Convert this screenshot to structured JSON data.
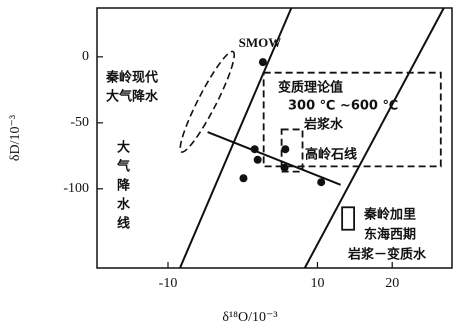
{
  "chart_data": {
    "type": "scatter",
    "x_label": "δ¹⁸O/10⁻³",
    "y_label": "δD/10⁻³",
    "xlim": [
      -19.5,
      28
    ],
    "ylim": [
      -160,
      37
    ],
    "xticks": [
      -10,
      10,
      20
    ],
    "yticks": [
      0,
      -50,
      -100
    ],
    "color": "#111111",
    "series": [
      {
        "name": "SMOW",
        "x": [
          2.7
        ],
        "y": [
          -4
        ]
      },
      {
        "x": [
          1.6,
          2,
          0.1,
          5.7,
          5.6,
          10.5
        ],
        "y": [
          -70,
          -78,
          -92,
          -70,
          -84,
          -95
        ]
      }
    ],
    "lines": [
      {
        "label": [
          "大",
          "气",
          "降",
          "水",
          "线"
        ],
        "x": [
          -8.4,
          6.5
        ],
        "y": [
          -160,
          37
        ]
      },
      {
        "x": [
          8.3,
          26.9
        ],
        "y": [
          -160,
          37
        ]
      },
      {
        "label": [
          "高岭石线"
        ],
        "x": [
          -4.7,
          13.1
        ],
        "y": [
          -57,
          -97
        ]
      }
    ],
    "regions": [
      {
        "shape": "ellipse",
        "style": "dashed",
        "label": [
          "秦岭现代",
          "大气降水"
        ],
        "x": [
          -8.2,
          -1.3
        ],
        "y": [
          -72,
          4
        ]
      },
      {
        "shape": "rect",
        "style": "dashed",
        "label": [
          "变质理论值",
          "300 ℃ ~600 ℃"
        ],
        "x": [
          2.8,
          26.5
        ],
        "y": [
          -83,
          -12
        ]
      },
      {
        "shape": "rect",
        "style": "dashed",
        "label": [
          "岩浆水"
        ],
        "x": [
          5.2,
          8
        ],
        "y": [
          -87,
          -55
        ]
      },
      {
        "shape": "rect",
        "style": "solid",
        "label": [
          "秦岭加里",
          "东海西期",
          "岩浆－变质水"
        ],
        "x": [
          13.3,
          14.9
        ],
        "y": [
          -131,
          -114
        ]
      }
    ]
  }
}
